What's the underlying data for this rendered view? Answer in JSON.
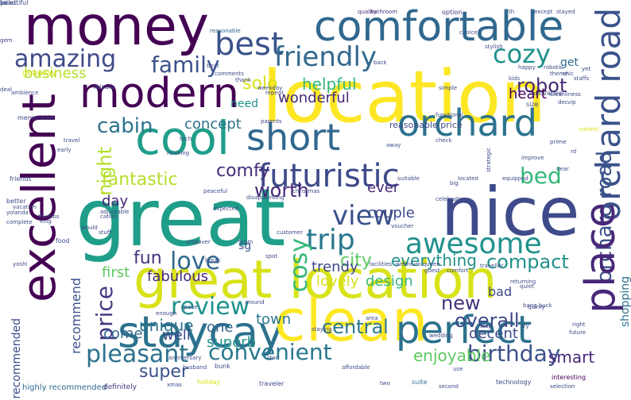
{
  "words": [
    {
      "text": "money",
      "color": "#440154"
    },
    {
      "text": "comfortable",
      "color": "#31688e"
    },
    {
      "text": "best",
      "color": "#3b528b"
    },
    {
      "text": "friendly",
      "color": "#31688e"
    },
    {
      "text": "amazing",
      "color": "#3e4a89"
    },
    {
      "text": "family",
      "color": "#3b528b"
    },
    {
      "text": "cozy",
      "color": "#21918c"
    },
    {
      "text": "modern",
      "color": "#440154"
    },
    {
      "text": "location",
      "color": "#fde725"
    },
    {
      "text": "cool",
      "color": "#1f9e89"
    },
    {
      "text": "short",
      "color": "#31688e"
    },
    {
      "text": "orchard",
      "color": "#2c728e"
    },
    {
      "text": "orchard road",
      "color": "#3b528b"
    },
    {
      "text": "cabin",
      "color": "#2c728e"
    },
    {
      "text": "night",
      "color": "#b5de2b"
    },
    {
      "text": "futuristic",
      "color": "#3e4a89"
    },
    {
      "text": "bed",
      "color": "#35b779"
    },
    {
      "text": "excellent",
      "color": "#440154"
    },
    {
      "text": "great",
      "color": "#1f9e89"
    },
    {
      "text": "nice",
      "color": "#3e4a89"
    },
    {
      "text": "view",
      "color": "#3b528b"
    },
    {
      "text": "trip",
      "color": "#2a788e"
    },
    {
      "text": "awesome",
      "color": "#21918c"
    },
    {
      "text": "orchard road",
      "color": "#3b528b"
    },
    {
      "text": "place",
      "color": "#482878"
    },
    {
      "text": "fantastic",
      "color": "#b5de2b"
    },
    {
      "text": "worth",
      "color": "#482878"
    },
    {
      "text": "comfy",
      "color": "#472d7b"
    },
    {
      "text": "great location",
      "color": "#d8e219"
    },
    {
      "text": "love",
      "color": "#31688e"
    },
    {
      "text": "fun",
      "color": "#46327e"
    },
    {
      "text": "cosy",
      "color": "#35b779"
    },
    {
      "text": "compact",
      "color": "#21918c"
    },
    {
      "text": "staycay",
      "color": "#2c728e"
    },
    {
      "text": "clean",
      "color": "#fde725"
    },
    {
      "text": "perfect",
      "color": "#2c728e"
    },
    {
      "text": "review",
      "color": "#21918c"
    },
    {
      "text": "price",
      "color": "#443983"
    },
    {
      "text": "fabulous",
      "color": "#482878"
    },
    {
      "text": "central",
      "color": "#2a788e"
    },
    {
      "text": "new",
      "color": "#46327e"
    },
    {
      "text": "overall",
      "color": "#3e4a89"
    },
    {
      "text": "convenient",
      "color": "#2a788e"
    },
    {
      "text": "birthday",
      "color": "#3b528b"
    },
    {
      "text": "pleasant",
      "color": "#2c728e"
    },
    {
      "text": "super",
      "color": "#3b528b"
    },
    {
      "text": "enjoyable",
      "color": "#5ec962"
    },
    {
      "text": "smart",
      "color": "#482878"
    },
    {
      "text": "solo",
      "color": "#d8e219"
    },
    {
      "text": "helpful",
      "color": "#35b779"
    },
    {
      "text": "robot",
      "color": "#482878"
    },
    {
      "text": "get",
      "color": "#31688e"
    },
    {
      "text": "heart",
      "color": "#440154"
    },
    {
      "text": "wonderful",
      "color": "#482878"
    },
    {
      "text": "business",
      "color": "#b5de2b"
    },
    {
      "text": "concept",
      "color": "#2c728e"
    },
    {
      "text": "need",
      "color": "#21918c"
    },
    {
      "text": "day",
      "color": "#482878"
    },
    {
      "text": "ever",
      "color": "#472d7b"
    },
    {
      "text": "couple",
      "color": "#3e4a89"
    },
    {
      "text": "city",
      "color": "#5ec962"
    },
    {
      "text": "everything",
      "color": "#21918c"
    },
    {
      "text": "trendy",
      "color": "#3e4a89"
    },
    {
      "text": "design",
      "color": "#35b779"
    },
    {
      "text": "lovely",
      "color": "#d8e219"
    },
    {
      "text": "first",
      "color": "#5ec962"
    },
    {
      "text": "unique",
      "color": "#2c728e"
    },
    {
      "text": "come",
      "color": "#31688e"
    },
    {
      "text": "well",
      "color": "#3e4a89"
    },
    {
      "text": "town",
      "color": "#2a788e"
    },
    {
      "text": "one",
      "color": "#31688e"
    },
    {
      "text": "superb",
      "color": "#21918c"
    },
    {
      "text": "decent",
      "color": "#3e4a89"
    },
    {
      "text": "bad",
      "color": "#3e4a89"
    },
    {
      "text": "recommend",
      "color": "#3b528b"
    },
    {
      "text": "recommended",
      "color": "#3e4a89"
    },
    {
      "text": "sg",
      "color": "#3b528b"
    },
    {
      "text": "shopping",
      "color": "#2c728e"
    },
    {
      "text": "reasonable price",
      "color": "#3e4a89"
    },
    {
      "text": "highly recommended",
      "color": "#31688e"
    },
    {
      "text": "definitely",
      "color": "#443983"
    },
    {
      "text": "holiday",
      "color": "#d8e219"
    },
    {
      "text": "traveler",
      "color": "#3e4a89"
    },
    {
      "text": "suite",
      "color": "#2c728e"
    },
    {
      "text": "second",
      "color": "#3e4a89"
    },
    {
      "text": "technology",
      "color": "#3e4a89"
    },
    {
      "text": "selection",
      "color": "#3e4a89"
    },
    {
      "text": "interesting",
      "color": "#440154"
    },
    {
      "text": "quality",
      "color": "#482878"
    },
    {
      "text": "bathroom",
      "color": "#443983"
    },
    {
      "text": "th",
      "color": "#3e4a89"
    },
    {
      "text": "stayed",
      "color": "#3e4a89"
    },
    {
      "text": "except",
      "color": "#3e4a89"
    },
    {
      "text": "option",
      "color": "#443983"
    },
    {
      "text": "choice",
      "color": "#3e4a89"
    },
    {
      "text": "stylish",
      "color": "#3e4a89"
    },
    {
      "text": "reasonable",
      "color": "#31688e"
    },
    {
      "text": "gem",
      "color": "#443983"
    },
    {
      "text": "ambience",
      "color": "#3e4a89"
    },
    {
      "text": "getaway",
      "color": "#d8e219"
    },
    {
      "text": "leisure",
      "color": "#3e4a89"
    },
    {
      "text": "deal",
      "color": "#3e4a89"
    },
    {
      "text": "memorable",
      "color": "#3e4a89"
    },
    {
      "text": "kids",
      "color": "#3e4a89"
    },
    {
      "text": "staffs",
      "color": "#3e4a89"
    },
    {
      "text": "cleanliness",
      "color": "#3e4a89"
    },
    {
      "text": "innovative",
      "color": "#3e4a89"
    },
    {
      "text": "vip",
      "color": "#3e4a89"
    },
    {
      "text": "size",
      "color": "#3e4a89"
    },
    {
      "text": "dec",
      "color": "#3e4a89"
    },
    {
      "text": "coolest",
      "color": "#d8e219"
    },
    {
      "text": "prime",
      "color": "#3e4a89"
    },
    {
      "text": "rd",
      "color": "#3e4a89"
    },
    {
      "text": "near",
      "color": "#3e4a89"
    },
    {
      "text": "strategic",
      "color": "#3e4a89"
    },
    {
      "text": "improve",
      "color": "#3e4a89"
    },
    {
      "text": "big",
      "color": "#3e4a89"
    },
    {
      "text": "check",
      "color": "#3e4a89"
    },
    {
      "text": "functional",
      "color": "#3e4a89"
    },
    {
      "text": "simple",
      "color": "#3e4a89"
    },
    {
      "text": "parents",
      "color": "#3e4a89"
    },
    {
      "text": "tech",
      "color": "#3e4a89"
    },
    {
      "text": "relaxing",
      "color": "#3e4a89"
    },
    {
      "text": "disappointing",
      "color": "#3e4a89"
    },
    {
      "text": "peaceful",
      "color": "#3e4a89"
    },
    {
      "text": "christmas",
      "color": "#3e4a89"
    },
    {
      "text": "better",
      "color": "#3e4a89"
    },
    {
      "text": "friends",
      "color": "#3e4a89"
    },
    {
      "text": "vacation",
      "color": "#3e4a89"
    },
    {
      "text": "yolanda",
      "color": "#3e4a89"
    },
    {
      "text": "complete",
      "color": "#3e4a89"
    },
    {
      "text": "thumbs",
      "color": "#3e4a89"
    },
    {
      "text": "cation",
      "color": "#3e4a89"
    },
    {
      "text": "king",
      "color": "#3e4a89"
    },
    {
      "text": "adjustable",
      "color": "#3e4a89"
    },
    {
      "text": "food",
      "color": "#3e4a89"
    },
    {
      "text": "would",
      "color": "#3e4a89"
    },
    {
      "text": "stuff",
      "color": "#3e4a89"
    },
    {
      "text": "stopover",
      "color": "#3e4a89"
    },
    {
      "text": "customer",
      "color": "#3e4a89"
    },
    {
      "text": "expected",
      "color": "#3e4a89"
    },
    {
      "text": "break",
      "color": "#3e4a89"
    },
    {
      "text": "facilities",
      "color": "#3e4a89"
    },
    {
      "text": "premium queen",
      "color": "#3e4a89"
    },
    {
      "text": "guest",
      "color": "#3e4a89"
    },
    {
      "text": "comfort",
      "color": "#3e4a89"
    },
    {
      "text": "traveller",
      "color": "#3e4a89"
    },
    {
      "text": "returning",
      "color": "#3e4a89"
    },
    {
      "text": "bang buck",
      "color": "#3e4a89"
    },
    {
      "text": "quirky",
      "color": "#3e4a89"
    },
    {
      "text": "quiet",
      "color": "#3e4a89"
    },
    {
      "text": "space",
      "color": "#3e4a89"
    },
    {
      "text": "enough",
      "color": "#3e4a89"
    },
    {
      "text": "anniversary",
      "color": "#3e4a89"
    },
    {
      "text": "husband",
      "color": "#3e4a89"
    },
    {
      "text": "bunk",
      "color": "#3e4a89"
    },
    {
      "text": "star",
      "color": "#3e4a89"
    },
    {
      "text": "staying",
      "color": "#3e4a89"
    },
    {
      "text": "area",
      "color": "#3e4a89"
    },
    {
      "text": "wedding",
      "color": "#3e4a89"
    },
    {
      "text": "stop",
      "color": "#3e4a89"
    },
    {
      "text": "try",
      "color": "#3e4a89"
    },
    {
      "text": "right",
      "color": "#3e4a89"
    },
    {
      "text": "future",
      "color": "#3e4a89"
    },
    {
      "text": "use",
      "color": "#3e4a89"
    },
    {
      "text": "xmas",
      "color": "#3e4a89"
    },
    {
      "text": "spot",
      "color": "#3e4a89"
    },
    {
      "text": "yoshi",
      "color": "#3e4a89"
    },
    {
      "text": "comments",
      "color": "#3e4a89"
    },
    {
      "text": "thank",
      "color": "#3e4a89"
    },
    {
      "text": "beat",
      "color": "#3e4a89"
    },
    {
      "text": "repeat",
      "color": "#3e4a89"
    },
    {
      "text": "weekday",
      "color": "#3e4a89"
    },
    {
      "text": "chic",
      "color": "#3e4a89"
    },
    {
      "text": "theme",
      "color": "#3e4a89"
    },
    {
      "text": "robotic",
      "color": "#3e4a89"
    },
    {
      "text": "happy",
      "color": "#3e4a89"
    },
    {
      "text": "yet",
      "color": "#3e4a89"
    },
    {
      "text": "back",
      "color": "#3e4a89"
    },
    {
      "text": "around",
      "color": "#3e4a89"
    },
    {
      "text": "away",
      "color": "#3e4a89"
    },
    {
      "text": "celebration",
      "color": "#3e4a89"
    },
    {
      "text": "located",
      "color": "#3e4a89"
    },
    {
      "text": "suitable",
      "color": "#3e4a89"
    },
    {
      "text": "equipped",
      "color": "#3e4a89"
    },
    {
      "text": "voucher",
      "color": "#3e4a89"
    },
    {
      "text": "team",
      "color": "#3e4a89"
    },
    {
      "text": "early",
      "color": "#3e4a89"
    },
    {
      "text": "travel",
      "color": "#3e4a89"
    },
    {
      "text": "two",
      "color": "#3e4a89"
    },
    {
      "text": "affordable",
      "color": "#3e4a89"
    },
    {
      "text": "yo",
      "color": "#3e4a89"
    },
    {
      "text": "beautiful",
      "color": "#3e4a89"
    },
    {
      "text": "toilet",
      "color": "#3e4a89"
    }
  ]
}
